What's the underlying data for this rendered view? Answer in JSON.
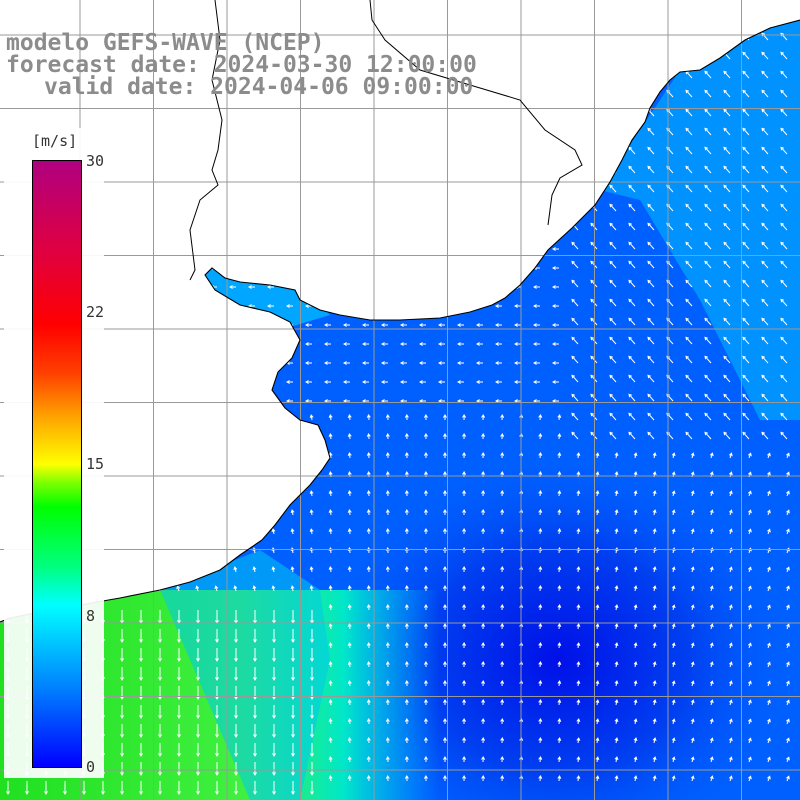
{
  "title": {
    "line1": "modelo GEFS-WAVE (NCEP)",
    "line2": "forecast date: 2024-03-30 12:00:00",
    "line3": "valid date: 2024-04-06 09:00:00"
  },
  "colorbar": {
    "unit": "[m/s]",
    "ticks": [
      "30",
      "22",
      "15",
      "8",
      "0"
    ],
    "min": 0,
    "max": 30
  },
  "colors": {
    "land": "#ffffff",
    "coastline": "#000000",
    "grid": "#999999",
    "vectors": "#ffffff",
    "title_text": "#8c8c8c"
  },
  "map": {
    "field": "wind speed",
    "arrows": "wind direction vectors",
    "region": "South Atlantic coast"
  }
}
